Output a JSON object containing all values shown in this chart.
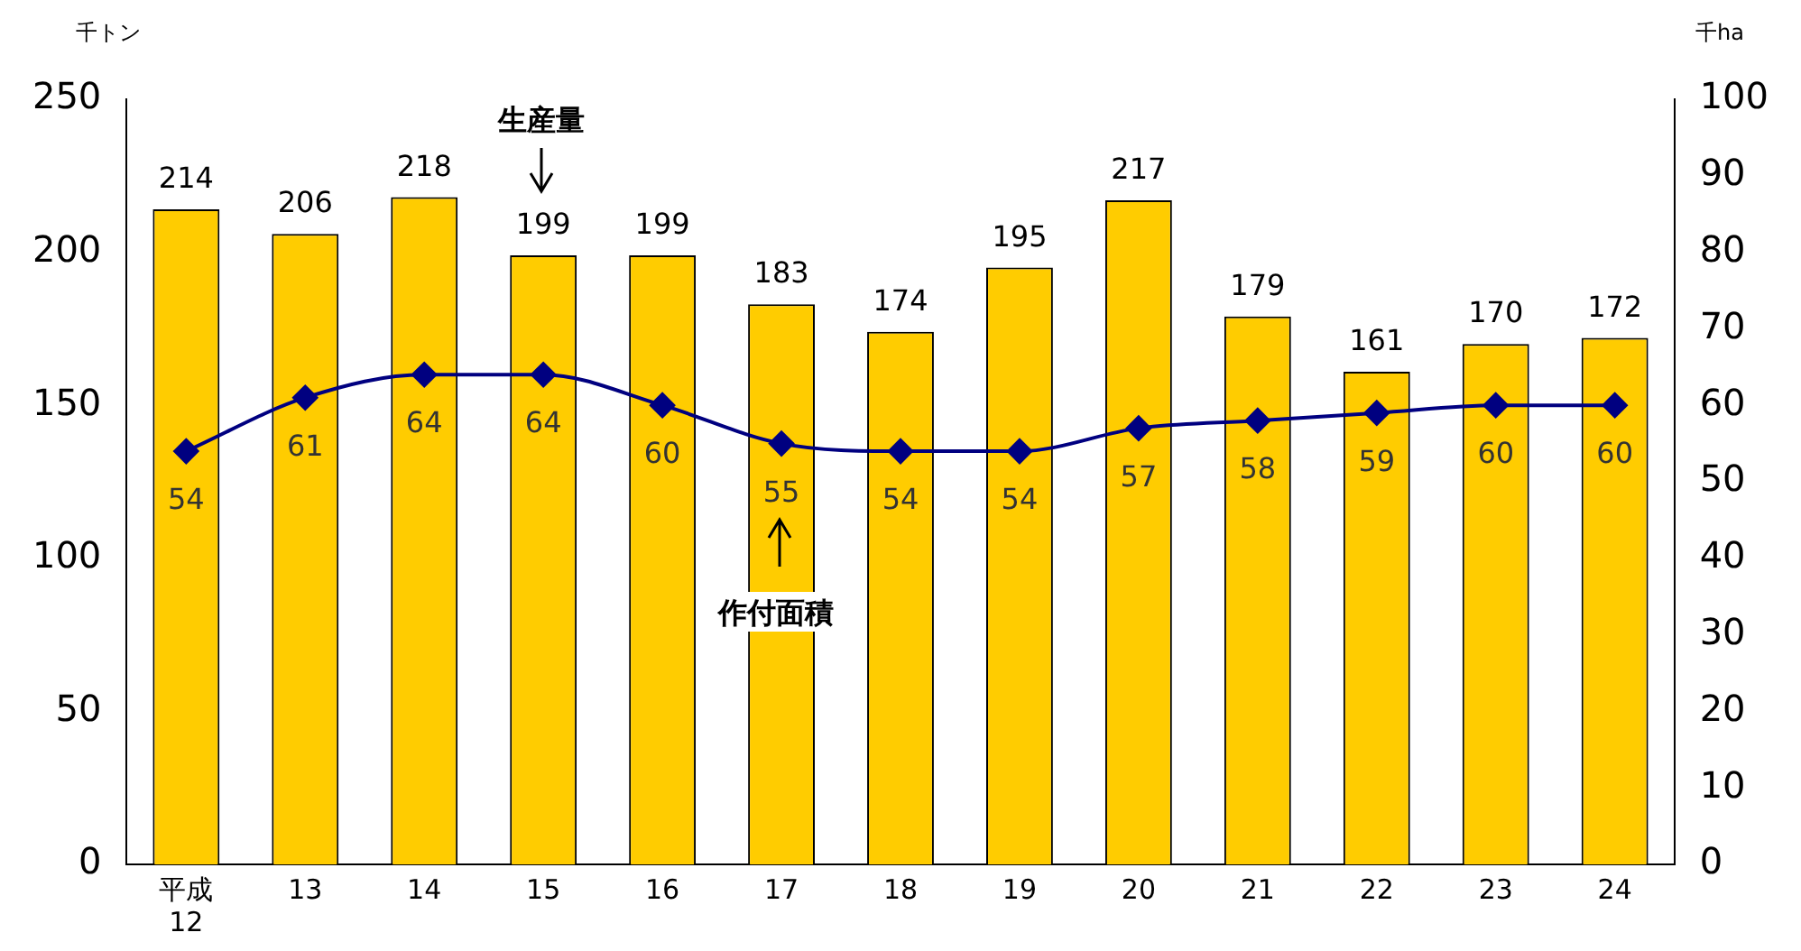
{
  "chart_data": {
    "type": "bar",
    "ylabel": "千トン",
    "y2label": "千ha",
    "categories": [
      "平成\n12",
      "13",
      "14",
      "15",
      "16",
      "17",
      "18",
      "19",
      "20",
      "21",
      "22",
      "23",
      "24"
    ],
    "series": [
      {
        "color": "#ffcc00",
        "values": [
          214,
          206,
          218,
          199,
          199,
          183,
          174,
          195,
          217,
          179,
          161,
          170,
          172
        ]
      },
      {
        "type": "line",
        "axis": "y2",
        "color": "#000080",
        "marker": "diamond",
        "values": [
          54,
          61,
          64,
          64,
          60,
          55,
          54,
          54,
          57,
          58,
          59,
          60,
          60
        ]
      }
    ],
    "ylim": [
      0,
      250
    ],
    "yticks": [
      0,
      50,
      100,
      150,
      200,
      250
    ],
    "y2lim": [
      0,
      100
    ],
    "y2ticks": [
      0,
      10,
      20,
      30,
      40,
      50,
      60,
      70,
      80,
      90,
      100
    ],
    "annotations": [
      "生産量",
      "作付面積"
    ],
    "data_labels": true,
    "grid": false,
    "legend": false
  }
}
